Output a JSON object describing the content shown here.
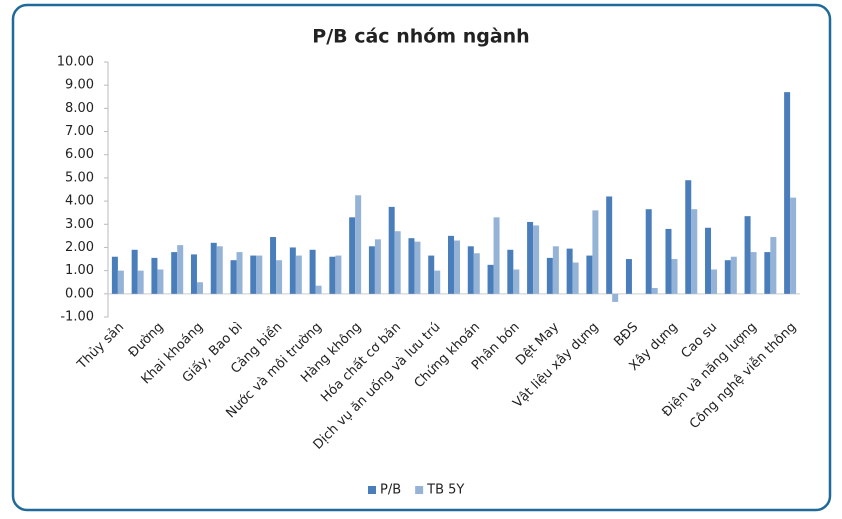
{
  "chart_data": {
    "type": "bar",
    "title": "P/B các nhóm ngành",
    "categories": [
      "Thủy sản",
      null,
      "Đường",
      null,
      "Khai khoáng",
      null,
      "Giấy, Bao bì",
      null,
      "Cảng biển",
      null,
      "Nước và môi trường",
      null,
      "Hàng không",
      null,
      "Hóa chất cơ bản",
      null,
      "Dịch vụ ăn uống và lưu trú",
      null,
      "Chứng khoán",
      null,
      "Phân bón",
      null,
      "Dệt May",
      null,
      "Vật liệu xây dựng",
      null,
      "BĐS",
      null,
      "Xây dựng",
      null,
      "Cao su",
      null,
      "Điện và năng lượng",
      null,
      "Công nghệ viễn thông"
    ],
    "series": [
      {
        "name": "P/B",
        "color": "#4a7ebb",
        "values": [
          1.6,
          1.9,
          1.55,
          1.8,
          1.7,
          2.2,
          1.45,
          1.65,
          2.45,
          2.0,
          1.9,
          1.6,
          3.3,
          2.05,
          3.75,
          2.4,
          1.65,
          2.5,
          2.05,
          1.25,
          1.9,
          3.1,
          1.55,
          1.95,
          1.65,
          4.2,
          1.5,
          3.65,
          2.8,
          4.9,
          2.85,
          1.45,
          3.35,
          1.8,
          8.7
        ]
      },
      {
        "name": "TB 5Y",
        "color": "#95b3d7",
        "values": [
          1.0,
          1.0,
          1.05,
          2.1,
          0.5,
          2.05,
          1.8,
          1.65,
          1.45,
          1.65,
          0.35,
          1.65,
          4.25,
          2.35,
          2.7,
          2.25,
          1.0,
          2.3,
          1.75,
          3.3,
          1.05,
          2.95,
          2.05,
          1.35,
          3.6,
          -0.35,
          0,
          0.25,
          1.5,
          3.65,
          1.05,
          1.6,
          1.8,
          2.45,
          4.15
        ]
      }
    ],
    "ylim": [
      -1,
      10
    ],
    "yticks": [
      {
        "value": -1,
        "label": "-1.00"
      },
      {
        "value": 0,
        "label": "0.00"
      },
      {
        "value": 1,
        "label": "1.00"
      },
      {
        "value": 2,
        "label": "2.00"
      },
      {
        "value": 3,
        "label": "3.00"
      },
      {
        "value": 4,
        "label": "4.00"
      },
      {
        "value": 5,
        "label": "5.00"
      },
      {
        "value": 6,
        "label": "6.00"
      },
      {
        "value": 7,
        "label": "7.00"
      },
      {
        "value": 8,
        "label": "8.00"
      },
      {
        "value": 9,
        "label": "9.00"
      },
      {
        "value": 10,
        "label": "10.00"
      }
    ],
    "grid": false,
    "legend": "bottom"
  }
}
